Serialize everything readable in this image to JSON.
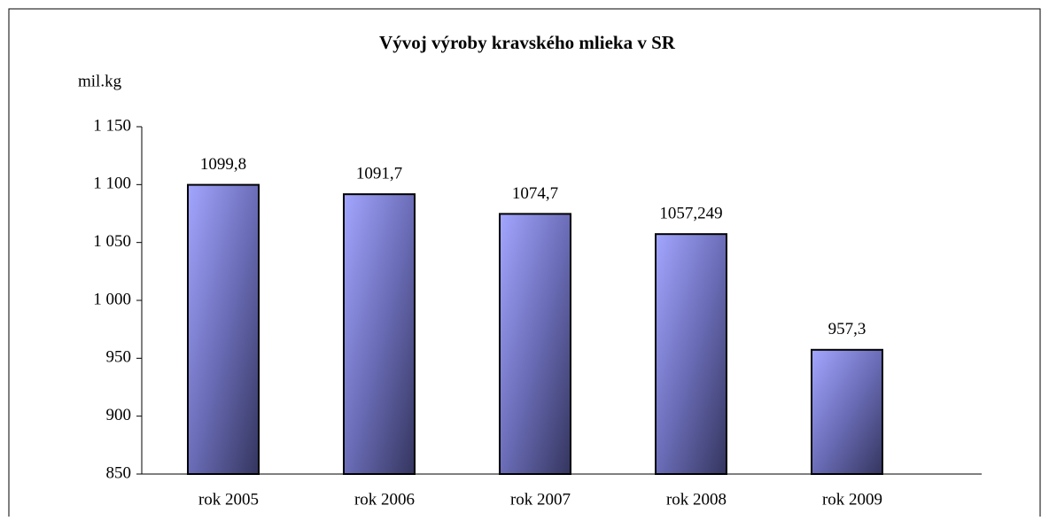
{
  "chart_data": {
    "type": "bar",
    "title": "Vývoj výroby kravského mlieka v SR",
    "y_label": "mil.kg",
    "categories": [
      "rok 2005",
      "rok 2006",
      "rok 2007",
      "rok 2008",
      "rok 2009"
    ],
    "values": [
      1099.8,
      1091.7,
      1074.7,
      1057.249,
      957.3
    ],
    "value_labels": [
      "1099,8",
      "1091,7",
      "1074,7",
      "1057,249",
      "957,3"
    ],
    "ylim": [
      850,
      1150
    ],
    "yticks": [
      {
        "value": 850,
        "label": "850"
      },
      {
        "value": 900,
        "label": "900"
      },
      {
        "value": 950,
        "label": "950"
      },
      {
        "value": 1000,
        "label": "1 000"
      },
      {
        "value": 1050,
        "label": "1 050"
      },
      {
        "value": 1100,
        "label": "1 100"
      },
      {
        "value": 1150,
        "label": "1 150"
      }
    ],
    "grid": false
  }
}
